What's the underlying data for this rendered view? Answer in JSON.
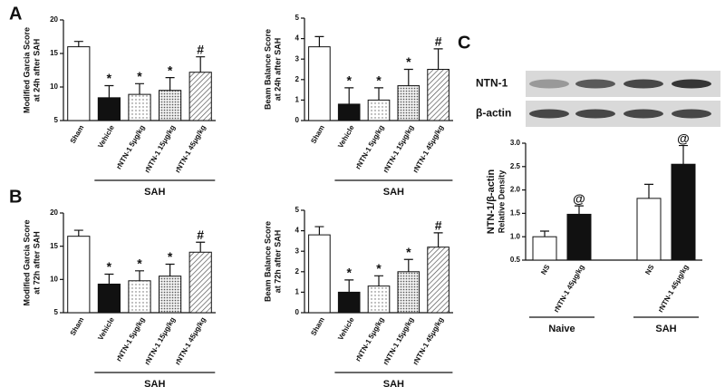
{
  "chart_data": [
    {
      "type": "bar",
      "panel_label": "A",
      "ylabel": [
        "Modified Garcia Score",
        "at 24h after SAH"
      ],
      "categories": [
        "Sham",
        "Vehicle",
        "rNTN-1 5μg/kg",
        "rNTN-1 15μg/kg",
        "rNTN-1 45μg/kg"
      ],
      "values": [
        16,
        8.4,
        8.9,
        9.5,
        12.2
      ],
      "errors": [
        0.8,
        1.8,
        1.6,
        1.9,
        2.3
      ],
      "annotations": [
        null,
        "*",
        "*",
        "*",
        "#"
      ],
      "fills": [
        "white",
        "black",
        "dots",
        "dense-dots",
        "hatch"
      ],
      "groups": [
        {
          "label": "SAH",
          "span": [
            1,
            4
          ]
        }
      ],
      "ylim": [
        5,
        20
      ],
      "yticks": [
        5,
        10,
        15,
        20
      ]
    },
    {
      "type": "bar",
      "ylabel": [
        "Beam Balance Score",
        "at 24h after SAH"
      ],
      "categories": [
        "Sham",
        "Vehicle",
        "rNTN-1 5μg/kg",
        "rNTN-1 15μg/kg",
        "rNTN-1 45μg/kg"
      ],
      "values": [
        3.6,
        0.8,
        1.0,
        1.7,
        2.5
      ],
      "errors": [
        0.5,
        0.8,
        0.6,
        0.8,
        1.0
      ],
      "annotations": [
        null,
        "*",
        "*",
        "*",
        "#"
      ],
      "fills": [
        "white",
        "black",
        "dots",
        "dense-dots",
        "hatch"
      ],
      "groups": [
        {
          "label": "SAH",
          "span": [
            1,
            4
          ]
        }
      ],
      "ylim": [
        0,
        5
      ],
      "yticks": [
        0,
        1,
        2,
        3,
        4,
        5
      ]
    },
    {
      "type": "bar",
      "panel_label": "B",
      "ylabel": [
        "Modified Garcia Score",
        "at 72h after SAH"
      ],
      "categories": [
        "Sham",
        "Vehicle",
        "rNTN-1 5μg/kg",
        "rNTN-1 15μg/kg",
        "rNTN-1 45μg/kg"
      ],
      "values": [
        16.5,
        9.3,
        9.8,
        10.5,
        14.1
      ],
      "errors": [
        0.9,
        1.5,
        1.5,
        1.8,
        1.5
      ],
      "annotations": [
        null,
        "*",
        "*",
        "*",
        "#"
      ],
      "fills": [
        "white",
        "black",
        "dots",
        "dense-dots",
        "hatch"
      ],
      "groups": [
        {
          "label": "SAH",
          "span": [
            1,
            4
          ]
        }
      ],
      "ylim": [
        5,
        20
      ],
      "yticks": [
        5,
        10,
        15,
        20
      ]
    },
    {
      "type": "bar",
      "ylabel": [
        "Beam Balance Score",
        "at 72h after SAH"
      ],
      "categories": [
        "Sham",
        "Vehicle",
        "rNTN-1 5μg/kg",
        "rNTN-1 15μg/kg",
        "rNTN-1 45μg/kg"
      ],
      "values": [
        3.8,
        1.0,
        1.3,
        2.0,
        3.2
      ],
      "errors": [
        0.4,
        0.6,
        0.5,
        0.6,
        0.7
      ],
      "annotations": [
        null,
        "*",
        "*",
        "*",
        "#"
      ],
      "fills": [
        "white",
        "black",
        "dots",
        "dense-dots",
        "hatch"
      ],
      "groups": [
        {
          "label": "SAH",
          "span": [
            1,
            4
          ]
        }
      ],
      "ylim": [
        0,
        5
      ],
      "yticks": [
        0,
        1,
        2,
        3,
        4,
        5
      ]
    },
    {
      "type": "bar",
      "panel_label": "C",
      "blot_labels": [
        "NTN-1",
        "β-actin"
      ],
      "ylabel": [
        "NTN-1/β-actin",
        "Relative Density"
      ],
      "categories": [
        "NS",
        "rNTN-1 45μg/kg",
        "NS",
        "rNTN-1 45μg/kg"
      ],
      "values": [
        1.0,
        1.48,
        1.82,
        2.55
      ],
      "errors": [
        0.12,
        0.18,
        0.3,
        0.4
      ],
      "annotations": [
        null,
        "@",
        null,
        "@"
      ],
      "fills": [
        "white",
        "black",
        "white",
        "black"
      ],
      "groups": [
        {
          "label": "Naive",
          "span": [
            0,
            1
          ]
        },
        {
          "label": "SAH",
          "span": [
            2,
            3
          ]
        }
      ],
      "ylim": [
        0.5,
        3.0
      ],
      "yticks": [
        {
          "value": 0.5,
          "label": "0.5"
        },
        {
          "value": 1.0,
          "label": "1.0"
        },
        {
          "value": 1.5,
          "label": "1.5"
        },
        {
          "value": 2.0,
          "label": "2.0"
        },
        {
          "value": 2.5,
          "label": "2.5"
        },
        {
          "value": 3.0,
          "label": "3.0"
        }
      ]
    }
  ]
}
